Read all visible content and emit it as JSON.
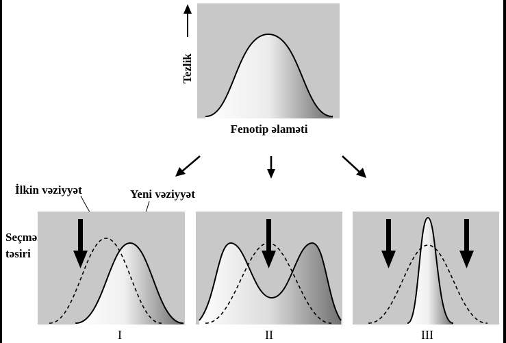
{
  "top_panel": {
    "y_axis_label": "Tezlik",
    "x_axis_label": "Fenotip əlaməti"
  },
  "legend": {
    "initial_state": "İlkin vəziyyət",
    "new_state": "Yeni vəziyyət",
    "selection_effect_line1": "Seçmənin",
    "selection_effect_line2": "təsiri"
  },
  "panels": [
    {
      "roman": "I"
    },
    {
      "roman": "II"
    },
    {
      "roman": "III"
    }
  ],
  "colors": {
    "panel_background": "#c8c8c8",
    "curve_stroke": "#000000",
    "frame": "#000000"
  }
}
